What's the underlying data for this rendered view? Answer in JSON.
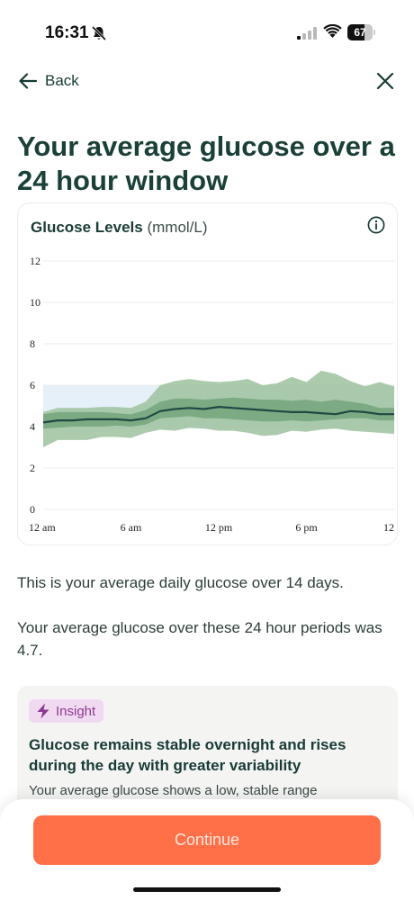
{
  "status_bar": {
    "time": "16:31",
    "battery": "67",
    "battery_level": 0.67
  },
  "nav": {
    "back_label": "Back"
  },
  "title": "Your average glucose over a 24 hour window",
  "chart_card": {
    "title": "Glucose Levels",
    "unit": "(mmol/L)"
  },
  "colors": {
    "accent": "#ff7048",
    "band_outer": "#9dc29f",
    "band_inner": "#6e9f76",
    "median_line": "#1f4a44",
    "target_zone": "#e6f0f8",
    "title_text": "#1a4038",
    "insight_badge": "#f0daf1"
  },
  "chart_data": {
    "type": "area",
    "title": "Glucose Levels",
    "ylabel": "(mmol/L)",
    "xlabel": "",
    "ylim": [
      0,
      12
    ],
    "yticks": [
      "0",
      "2",
      "4",
      "6",
      "8",
      "10",
      "12"
    ],
    "xticks": [
      "12 am",
      "6 am",
      "12 pm",
      "6 pm",
      "12"
    ],
    "xlim": [
      0,
      24
    ],
    "grid": true,
    "target_range": [
      3.9,
      6
    ],
    "x": [
      0,
      1,
      2,
      3,
      4,
      5,
      6,
      7,
      8,
      9,
      10,
      11,
      12,
      13,
      14,
      15,
      16,
      17,
      18,
      19,
      20,
      21,
      22,
      23,
      24
    ],
    "series": [
      {
        "name": "",
        "role": "median",
        "values": [
          4.2,
          4.3,
          4.3,
          4.35,
          4.35,
          4.35,
          4.3,
          4.4,
          4.75,
          4.85,
          4.9,
          4.85,
          4.95,
          4.9,
          4.85,
          4.8,
          4.75,
          4.7,
          4.7,
          4.65,
          4.6,
          4.75,
          4.7,
          4.6,
          4.6
        ]
      },
      {
        "name": "",
        "role": "iqr_low",
        "values": [
          3.9,
          3.95,
          4.0,
          4.0,
          4.0,
          4.05,
          4.0,
          4.1,
          4.4,
          4.45,
          4.5,
          4.4,
          4.4,
          4.35,
          4.3,
          4.25,
          4.25,
          4.3,
          4.25,
          4.3,
          4.35,
          4.4,
          4.4,
          4.3,
          4.3
        ]
      },
      {
        "name": "",
        "role": "iqr_high",
        "values": [
          4.6,
          4.7,
          4.7,
          4.7,
          4.7,
          4.65,
          4.6,
          4.8,
          5.2,
          5.35,
          5.35,
          5.3,
          5.35,
          5.4,
          5.35,
          5.3,
          5.3,
          5.25,
          5.3,
          5.2,
          5.3,
          5.2,
          5.1,
          4.9,
          4.9
        ]
      },
      {
        "name": "",
        "role": "range_low",
        "values": [
          3.0,
          3.35,
          3.35,
          3.35,
          3.5,
          3.5,
          3.45,
          3.7,
          3.85,
          3.8,
          3.95,
          3.9,
          3.8,
          3.8,
          3.7,
          3.55,
          3.6,
          3.8,
          3.75,
          3.85,
          3.9,
          3.8,
          3.75,
          3.7,
          3.65
        ]
      },
      {
        "name": "",
        "role": "range_high",
        "values": [
          4.7,
          4.9,
          4.9,
          4.9,
          4.95,
          4.95,
          4.9,
          5.2,
          6.0,
          6.2,
          6.3,
          6.2,
          6.15,
          6.2,
          6.3,
          6.0,
          6.1,
          6.4,
          6.15,
          6.7,
          6.55,
          6.2,
          5.95,
          6.15,
          5.95
        ]
      }
    ]
  },
  "summary": {
    "line1": "This is your average daily glucose over 14 days.",
    "line2": "Your average glucose over these 24 hour periods was 4.7."
  },
  "insight": {
    "badge": "Insight",
    "heading": "Glucose remains stable overnight and rises during the day with greater variability",
    "body": "Your average glucose shows a low, stable range"
  },
  "footer": {
    "continue_label": "Continue"
  }
}
